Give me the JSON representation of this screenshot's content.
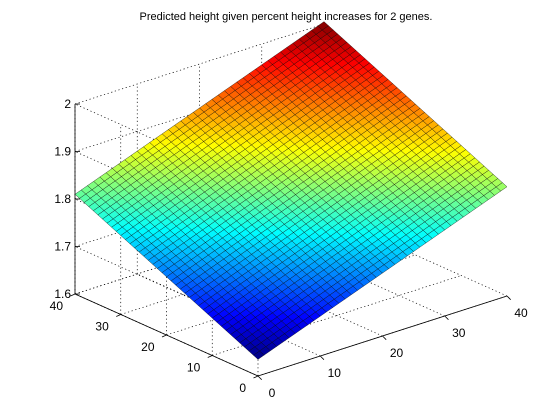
{
  "chart_data": {
    "type": "surface",
    "title": "Predicted height given percent height increases for 2 genes.",
    "xlabel": "",
    "ylabel": "",
    "zlabel": "",
    "x_range": [
      0,
      40
    ],
    "y_range": [
      0,
      40
    ],
    "zlim": [
      1.6,
      2.0
    ],
    "x_ticks": [
      0,
      10,
      20,
      30,
      40
    ],
    "y_ticks": [
      0,
      10,
      20,
      30,
      40
    ],
    "z_ticks": [
      1.6,
      1.7,
      1.8,
      1.9,
      2.0
    ],
    "x_tick_labels": [
      "0",
      "10",
      "20",
      "30",
      "40"
    ],
    "y_tick_labels": [
      "0",
      "10",
      "20",
      "30",
      "40"
    ],
    "z_tick_labels": [
      "1.6",
      "1.7",
      "1.8",
      "1.9",
      "2"
    ],
    "mesh_step": 1,
    "surface_corners": [
      {
        "x": 0,
        "y": 0,
        "z": 1.635
      },
      {
        "x": 40,
        "y": 0,
        "z": 1.83
      },
      {
        "x": 0,
        "y": 40,
        "z": 1.81
      },
      {
        "x": 40,
        "y": 40,
        "z": 2.005
      }
    ],
    "colormap": "jet",
    "grid": true
  }
}
